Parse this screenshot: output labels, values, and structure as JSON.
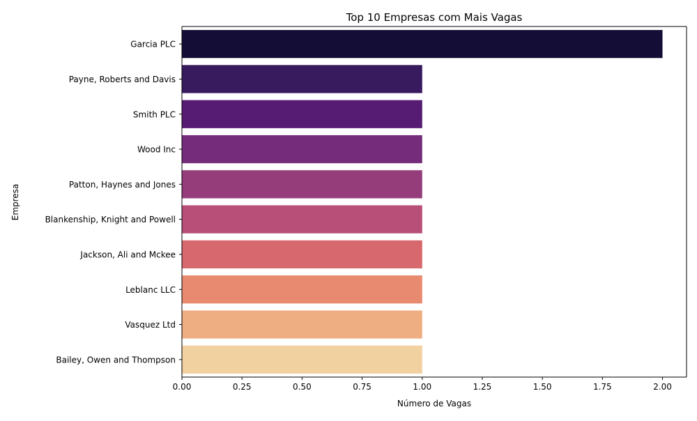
{
  "chart_data": {
    "type": "bar",
    "orientation": "horizontal",
    "title": "Top 10 Empresas com Mais Vagas",
    "xlabel": "Número de Vagas",
    "ylabel": "Empresa",
    "xlim": [
      0,
      2.1
    ],
    "xticks": [
      "0.00",
      "0.25",
      "0.50",
      "0.75",
      "1.00",
      "1.25",
      "1.50",
      "1.75",
      "2.00"
    ],
    "grid": false,
    "categories": [
      "Garcia PLC",
      "Payne, Roberts and Davis",
      "Smith PLC",
      "Wood Inc",
      "Patton, Haynes and Jones",
      "Blankenship, Knight and Powell",
      "Jackson, Ali and Mckee",
      "Leblanc LLC",
      "Vasquez Ltd",
      "Bailey, Owen and Thompson"
    ],
    "values": [
      2,
      1,
      1,
      1,
      1,
      1,
      1,
      1,
      1,
      1
    ],
    "colors": [
      "#140e36",
      "#381a5f",
      "#561c73",
      "#752d7b",
      "#943d7a",
      "#b84f78",
      "#d6686e",
      "#e78a70",
      "#eeae82",
      "#f2d1a0"
    ]
  }
}
